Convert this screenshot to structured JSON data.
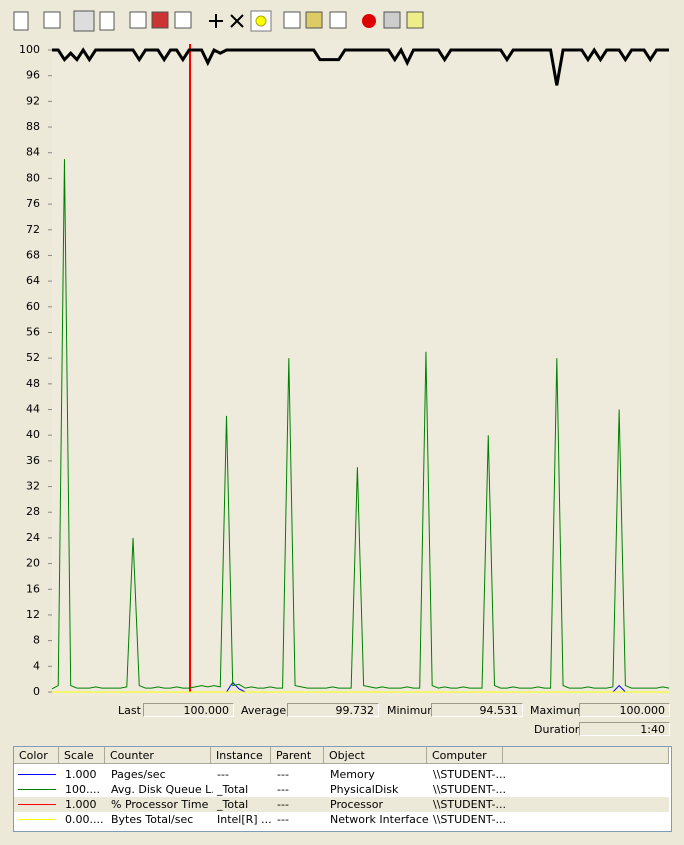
{
  "graph": {
    "type": "line",
    "ylim": [
      0,
      100
    ],
    "yticks": [
      0,
      4,
      8,
      12,
      16,
      20,
      24,
      28,
      32,
      36,
      40,
      44,
      48,
      52,
      56,
      60,
      64,
      68,
      72,
      76,
      80,
      84,
      88,
      92,
      96,
      100
    ],
    "highlight": 2,
    "series": [
      {
        "name": "Pages/sec",
        "color": "#0000ff",
        "values": [
          0,
          0,
          0,
          0,
          0,
          0,
          0,
          0,
          0,
          0,
          0,
          0,
          0,
          0,
          0,
          0,
          0,
          0,
          0,
          0,
          0,
          0,
          0,
          0,
          0,
          0,
          0,
          0,
          0,
          1.5,
          0.5,
          0,
          0,
          0,
          0,
          0,
          0,
          0,
          0,
          0,
          0,
          0,
          0,
          0,
          0,
          0,
          0,
          0,
          0,
          0,
          0,
          0,
          0,
          0,
          0,
          0,
          0,
          0,
          0,
          0,
          0,
          0,
          0,
          0,
          0,
          0,
          0,
          0,
          0,
          0,
          0,
          0,
          0,
          0,
          0,
          0,
          0,
          0,
          0,
          0,
          0,
          0,
          0,
          0,
          0,
          0,
          0,
          0,
          0,
          0,
          0,
          1,
          0,
          0,
          0,
          0,
          0,
          0,
          0,
          0
        ]
      },
      {
        "name": "Avg. Disk Queue L...",
        "color": "#008000",
        "values": [
          0.5,
          1,
          83,
          1,
          0.6,
          0.6,
          0.6,
          0.8,
          0.6,
          0.6,
          0.6,
          0.6,
          0.8,
          24,
          1,
          0.6,
          0.6,
          0.8,
          0.6,
          0.6,
          0.8,
          0.6,
          0.6,
          0.8,
          1,
          0.8,
          1,
          0.8,
          43,
          1,
          1.2,
          0.6,
          0.8,
          0.6,
          0.6,
          0.8,
          0.6,
          0.6,
          52,
          1,
          0.8,
          0.6,
          0.6,
          0.6,
          0.6,
          0.8,
          0.6,
          0.6,
          0.6,
          35,
          1,
          0.8,
          0.6,
          0.8,
          0.6,
          0.6,
          0.6,
          0.8,
          0.6,
          0.6,
          53,
          1,
          0.6,
          0.8,
          0.6,
          0.6,
          0.8,
          0.6,
          0.6,
          0.6,
          40,
          1,
          0.6,
          0.6,
          0.8,
          0.6,
          0.6,
          0.6,
          0.8,
          0.6,
          0.6,
          52,
          1,
          0.6,
          0.6,
          0.6,
          0.8,
          0.6,
          0.6,
          0.6,
          0.8,
          44,
          1,
          0.6,
          0.6,
          0.6,
          0.6,
          0.6,
          0.8,
          0.6
        ]
      },
      {
        "name": "% Processor Time",
        "color": "#ff0000",
        "values": [
          100,
          100,
          98.5,
          99.5,
          98.5,
          100,
          98.5,
          100,
          100,
          100,
          100,
          100,
          100,
          100,
          98.5,
          100,
          100,
          100,
          98.5,
          100,
          100,
          98.5,
          100,
          100,
          100,
          98,
          100,
          99.5,
          100,
          100,
          100,
          100,
          100,
          100,
          100,
          100,
          100,
          100,
          100,
          100,
          100,
          100,
          100,
          98.5,
          98.5,
          98.5,
          98.5,
          100,
          100,
          100,
          100,
          100,
          100,
          100,
          100,
          98.5,
          100,
          98,
          100,
          100,
          100,
          100,
          100,
          98.5,
          100,
          100,
          100,
          100,
          100,
          100,
          100,
          100,
          100,
          98.5,
          100,
          100,
          100,
          100,
          100,
          100,
          100,
          94.5,
          100,
          100,
          100,
          100,
          98.5,
          100,
          98.5,
          100,
          100,
          100,
          98.5,
          100,
          100,
          100,
          98.5,
          100,
          100,
          100
        ]
      },
      {
        "name": "Bytes Total/sec",
        "color": "#ffff00",
        "values": [
          0,
          0,
          0,
          0,
          0,
          0,
          0,
          0,
          0,
          0,
          0,
          0,
          0,
          0,
          0,
          0,
          0,
          0,
          0,
          0,
          0,
          0,
          0,
          0,
          0,
          0,
          0,
          0,
          0,
          0,
          0,
          0,
          0,
          0,
          0,
          0,
          0,
          0,
          0,
          0,
          0,
          0,
          0,
          0,
          0,
          0,
          0,
          0,
          0,
          0,
          0,
          0,
          0,
          0,
          0,
          0,
          0,
          0,
          0,
          0,
          0,
          0,
          0,
          0,
          0,
          0,
          0,
          0,
          0,
          0,
          0,
          0,
          0,
          0,
          0,
          0,
          0,
          0,
          0,
          0,
          0,
          0,
          0,
          0,
          0,
          0,
          0,
          0,
          0,
          0,
          0,
          0,
          0,
          0,
          0,
          0,
          0,
          0,
          0,
          0
        ]
      }
    ]
  },
  "stats": {
    "last_label": "Last",
    "last": "100.000",
    "average_label": "Average",
    "average": "99.732",
    "minimum_label": "Minimum",
    "minimum": "94.531",
    "maximum_label": "Maximum",
    "maximum": "100.000",
    "duration_label": "Duration",
    "duration": "1:40"
  },
  "table": {
    "headers": [
      "Color",
      "Scale",
      "Counter",
      "Instance",
      "Parent",
      "Object",
      "Computer"
    ],
    "rows": [
      {
        "scale": "1.000",
        "instance": "---",
        "parent": "---",
        "object": "Memory",
        "computer": "\\\\STUDENT-..."
      },
      {
        "scale": "100....",
        "instance": "_Total",
        "parent": "---",
        "object": "PhysicalDisk",
        "computer": "\\\\STUDENT-..."
      },
      {
        "scale": "1.000",
        "instance": "_Total",
        "parent": "---",
        "object": "Processor",
        "computer": "\\\\STUDENT-..."
      },
      {
        "scale": "0.00....",
        "instance": "Intel[R] ...",
        "parent": "---",
        "object": "Network Interface",
        "computer": "\\\\STUDENT-..."
      }
    ]
  }
}
